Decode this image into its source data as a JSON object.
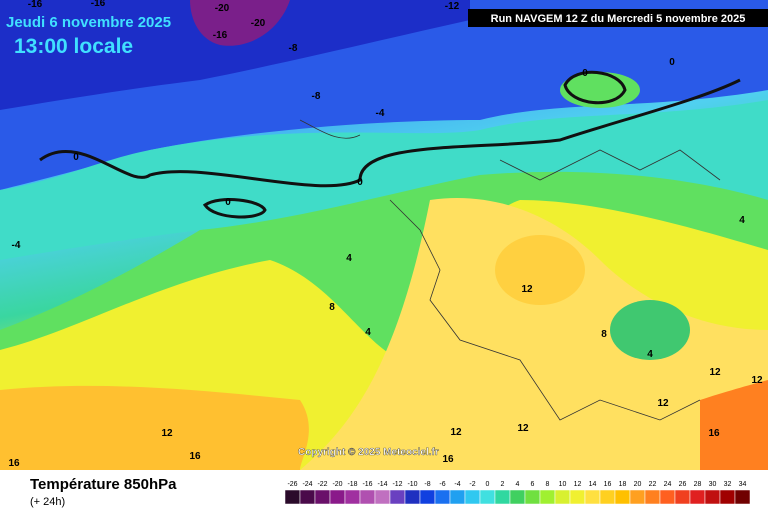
{
  "header": {
    "date": "Jeudi 6 novembre 2025",
    "time": "13:00 locale",
    "run": "Run NAVGEM 12 Z du Mercredi 5 novembre 2025"
  },
  "copyright": "Copyright © 2025 Meteociel.fr",
  "footer": {
    "title": "Température 850hPa",
    "subtitle": "(+ 24h)"
  },
  "legend": [
    "-26",
    "-24",
    "-22",
    "-20",
    "-18",
    "-16",
    "-14",
    "-12",
    "-10",
    "-8",
    "-6",
    "-4",
    "-2",
    "0",
    "2",
    "4",
    "6",
    "8",
    "10",
    "12",
    "14",
    "16",
    "18",
    "20",
    "22",
    "24",
    "26",
    "28",
    "30",
    "32",
    "34"
  ],
  "contour_labels": [
    "-20",
    "-20",
    "-16",
    "-16",
    "-16",
    "-12",
    "-8",
    "-8",
    "-4",
    "0",
    "0",
    "0",
    "0",
    "0",
    "-4",
    "4",
    "4",
    "8",
    "4",
    "12",
    "8",
    "4",
    "12",
    "12",
    "12",
    "12",
    "12",
    "12",
    "16",
    "16",
    "16",
    "16"
  ]
}
